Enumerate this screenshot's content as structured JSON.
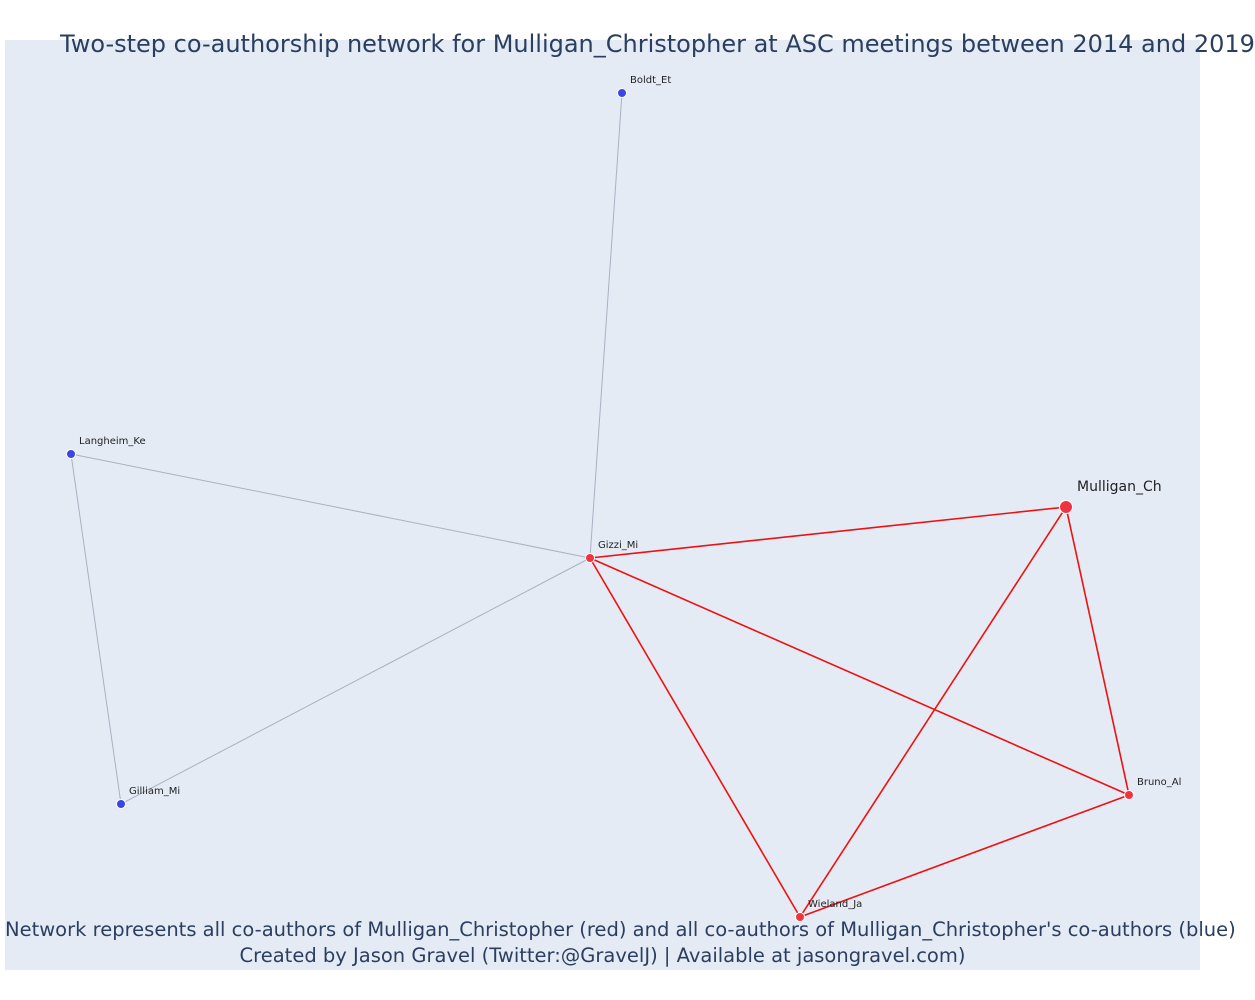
{
  "title": "Two-step co-authorship network for Mulligan_Christopher at ASC meetings between 2014 and 2019",
  "caption": {
    "line1": "Network represents all co-authors of Mulligan_Christopher (red) and all co-authors of Mulligan_Christopher's co-authors (blue)",
    "line2": "Created by Jason Gravel (Twitter:@GravelJ) | Available at jasongravel.com)"
  },
  "colors": {
    "background": "#e5ebf5",
    "coauthor_node": "#ef3340",
    "second_step_node": "#3b44e8",
    "focal_edge": "#ee1111",
    "other_edge": "#aab0c2",
    "title_text": "#2a3f5f"
  },
  "network": {
    "nodes": [
      {
        "id": "Mulligan_Ch",
        "group": "focal"
      },
      {
        "id": "Gizzi_Mi",
        "group": "coauthor"
      },
      {
        "id": "Bruno_Al",
        "group": "coauthor"
      },
      {
        "id": "Wieland_Ja",
        "group": "coauthor"
      },
      {
        "id": "Boldt_Et",
        "group": "second_step"
      },
      {
        "id": "Langheim_Ke",
        "group": "second_step"
      },
      {
        "id": "Gilliam_Mi",
        "group": "second_step"
      }
    ],
    "edges": [
      {
        "source": "Gizzi_Mi",
        "target": "Boldt_Et",
        "type": "other"
      },
      {
        "source": "Gizzi_Mi",
        "target": "Langheim_Ke",
        "type": "other"
      },
      {
        "source": "Gizzi_Mi",
        "target": "Gilliam_Mi",
        "type": "other"
      },
      {
        "source": "Langheim_Ke",
        "target": "Gilliam_Mi",
        "type": "other"
      },
      {
        "source": "Gizzi_Mi",
        "target": "Mulligan_Ch",
        "type": "focal"
      },
      {
        "source": "Gizzi_Mi",
        "target": "Bruno_Al",
        "type": "focal"
      },
      {
        "source": "Gizzi_Mi",
        "target": "Wieland_Ja",
        "type": "focal"
      },
      {
        "source": "Mulligan_Ch",
        "target": "Bruno_Al",
        "type": "focal"
      },
      {
        "source": "Mulligan_Ch",
        "target": "Wieland_Ja",
        "type": "focal"
      },
      {
        "source": "Bruno_Al",
        "target": "Wieland_Ja",
        "type": "focal"
      }
    ]
  }
}
